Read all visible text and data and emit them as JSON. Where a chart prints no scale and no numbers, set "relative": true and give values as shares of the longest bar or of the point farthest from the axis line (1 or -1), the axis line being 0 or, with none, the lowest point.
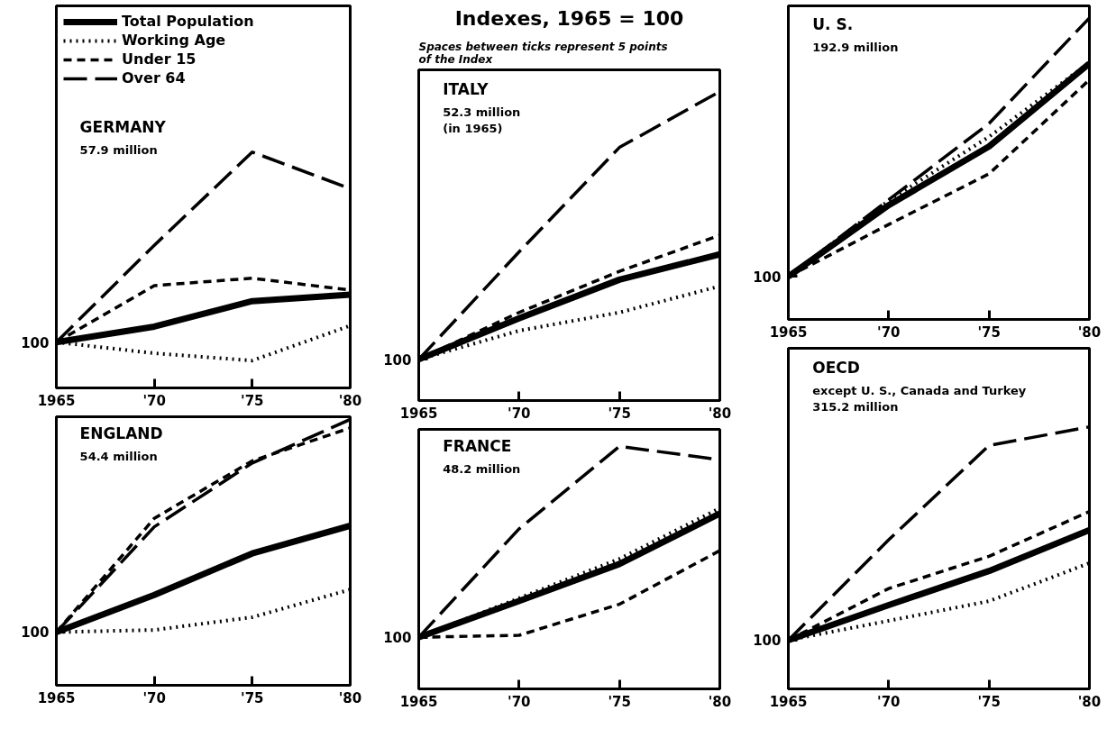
{
  "chart_data": [
    {
      "type": "line",
      "title": "GERMANY",
      "subtitle": "57.9 million",
      "relative": true,
      "annotations": [
        "100"
      ],
      "x": [
        1965,
        1970,
        1975,
        1980
      ],
      "xlim": [
        1965,
        1980
      ],
      "xticks": [
        1965,
        {
          "value": 1970,
          "label": "'70"
        },
        {
          "value": 1975,
          "label": "'75"
        },
        {
          "value": 1980,
          "label": "'80"
        }
      ],
      "legend": "top left",
      "grid": false,
      "series": [
        {
          "name": "Total Population",
          "color": "#000000",
          "line_style": "solid",
          "values": [
            0.194,
            0.26,
            0.368,
            0.395
          ]
        },
        {
          "name": "Working Age",
          "color": "#000000",
          "line_style": "dotted",
          "values": [
            0.194,
            0.147,
            0.116,
            0.264
          ]
        },
        {
          "name": "Under 15",
          "color": "#000000",
          "line_style": "dashed",
          "values": [
            0.194,
            0.434,
            0.465,
            0.415
          ]
        },
        {
          "name": "Over 64",
          "color": "#000000",
          "line_style": "long dashed",
          "values": [
            0.194,
            0.605,
            1,
            0.845
          ]
        }
      ]
    },
    {
      "type": "line",
      "title": "ITALY",
      "subtitle": "52.3 million\n(in 1965)",
      "relative": true,
      "annotations": [
        "Indexes, 1965 = 100",
        "Spaces between ticks represent 5 points\nof the Index",
        "100"
      ],
      "x": [
        1965,
        1970,
        1975,
        1980
      ],
      "xlim": [
        1965,
        1980
      ],
      "xticks": [
        1965,
        {
          "value": 1970,
          "label": "'70"
        },
        {
          "value": 1975,
          "label": "'75"
        },
        {
          "value": 1980,
          "label": "'80"
        }
      ],
      "grid": false,
      "series": [
        {
          "color": "#000000",
          "line_style": "solid",
          "values": [
            0.133,
            0.266,
            0.391,
            0.473
          ]
        },
        {
          "color": "#000000",
          "line_style": "dotted",
          "values": [
            0.133,
            0.226,
            0.285,
            0.37
          ]
        },
        {
          "color": "#000000",
          "line_style": "dashed",
          "values": [
            0.133,
            0.285,
            0.418,
            0.535
          ]
        },
        {
          "color": "#000000",
          "line_style": "long dashed",
          "values": [
            0.133,
            0.481,
            0.819,
            1
          ]
        }
      ]
    },
    {
      "type": "line",
      "title": "U. S.",
      "subtitle": "192.9 million",
      "relative": true,
      "annotations": [
        "100"
      ],
      "x": [
        1965,
        1970,
        1975,
        1980
      ],
      "xlim": [
        1965,
        1980
      ],
      "xticks": [
        1965,
        {
          "value": 1970,
          "label": "'70"
        },
        {
          "value": 1975,
          "label": "'75"
        },
        {
          "value": 1980,
          "label": "'80"
        }
      ],
      "grid": false,
      "series": [
        {
          "color": "#000000",
          "line_style": "solid",
          "values": [
            0.142,
            0.379,
            0.574,
            0.849
          ]
        },
        {
          "color": "#000000",
          "line_style": "dotted",
          "values": [
            0.142,
            0.394,
            0.606,
            0.852
          ]
        },
        {
          "color": "#000000",
          "line_style": "dashed",
          "values": [
            0.142,
            0.315,
            0.483,
            0.795
          ]
        },
        {
          "color": "#000000",
          "line_style": "long dashed",
          "values": [
            0.142,
            0.397,
            0.65,
            1
          ]
        }
      ]
    },
    {
      "type": "line",
      "title": "ENGLAND",
      "subtitle": "54.4 million",
      "relative": true,
      "annotations": [
        "100"
      ],
      "x": [
        1965,
        1970,
        1975,
        1980
      ],
      "xlim": [
        1965,
        1980
      ],
      "xticks": [
        1965,
        {
          "value": 1970,
          "label": "'70"
        },
        {
          "value": 1975,
          "label": "'75"
        },
        {
          "value": 1980,
          "label": "'80"
        }
      ],
      "grid": false,
      "series": [
        {
          "color": "#000000",
          "line_style": "solid",
          "values": [
            0.2,
            0.34,
            0.496,
            0.6
          ]
        },
        {
          "color": "#000000",
          "line_style": "dotted",
          "values": [
            0.2,
            0.208,
            0.256,
            0.36
          ]
        },
        {
          "color": "#000000",
          "line_style": "dashed",
          "values": [
            0.2,
            0.628,
            0.844,
            0.968
          ]
        },
        {
          "color": "#000000",
          "line_style": "long dashed",
          "values": [
            0.2,
            0.596,
            0.836,
            1
          ]
        }
      ]
    },
    {
      "type": "line",
      "title": "FRANCE",
      "subtitle": "48.2 million",
      "relative": true,
      "annotations": [
        "100"
      ],
      "x": [
        1965,
        1970,
        1975,
        1980
      ],
      "xlim": [
        1965,
        1980
      ],
      "xticks": [
        1965,
        {
          "value": 1970,
          "label": "'70"
        },
        {
          "value": 1975,
          "label": "'75"
        },
        {
          "value": 1980,
          "label": "'80"
        }
      ],
      "grid": false,
      "series": [
        {
          "color": "#000000",
          "line_style": "solid",
          "values": [
            0.213,
            0.362,
            0.515,
            0.723
          ]
        },
        {
          "color": "#000000",
          "line_style": "dotted",
          "values": [
            0.213,
            0.374,
            0.536,
            0.745
          ]
        },
        {
          "color": "#000000",
          "line_style": "dashed",
          "values": [
            0.213,
            0.221,
            0.349,
            0.57
          ]
        },
        {
          "color": "#000000",
          "line_style": "long dashed",
          "values": [
            0.213,
            0.66,
            1,
            0.945
          ]
        }
      ]
    },
    {
      "type": "line",
      "title": "OECD",
      "subtitle": "except U. S., Canada and Turkey\n315.2 million",
      "relative": true,
      "annotations": [
        "100"
      ],
      "x": [
        1965,
        1970,
        1975,
        1980
      ],
      "xlim": [
        1965,
        1980
      ],
      "xticks": [
        1965,
        {
          "value": 1970,
          "label": "'70"
        },
        {
          "value": 1975,
          "label": "'75"
        },
        {
          "value": 1980,
          "label": "'80"
        }
      ],
      "grid": false,
      "series": [
        {
          "color": "#000000",
          "line_style": "solid",
          "values": [
            0.186,
            0.32,
            0.45,
            0.606
          ]
        },
        {
          "color": "#000000",
          "line_style": "dotted",
          "values": [
            0.186,
            0.26,
            0.335,
            0.48
          ]
        },
        {
          "color": "#000000",
          "line_style": "dashed",
          "values": [
            0.186,
            0.383,
            0.506,
            0.677
          ]
        },
        {
          "color": "#000000",
          "line_style": "long dashed",
          "values": [
            0.186,
            0.569,
            0.929,
            1
          ]
        }
      ]
    }
  ]
}
